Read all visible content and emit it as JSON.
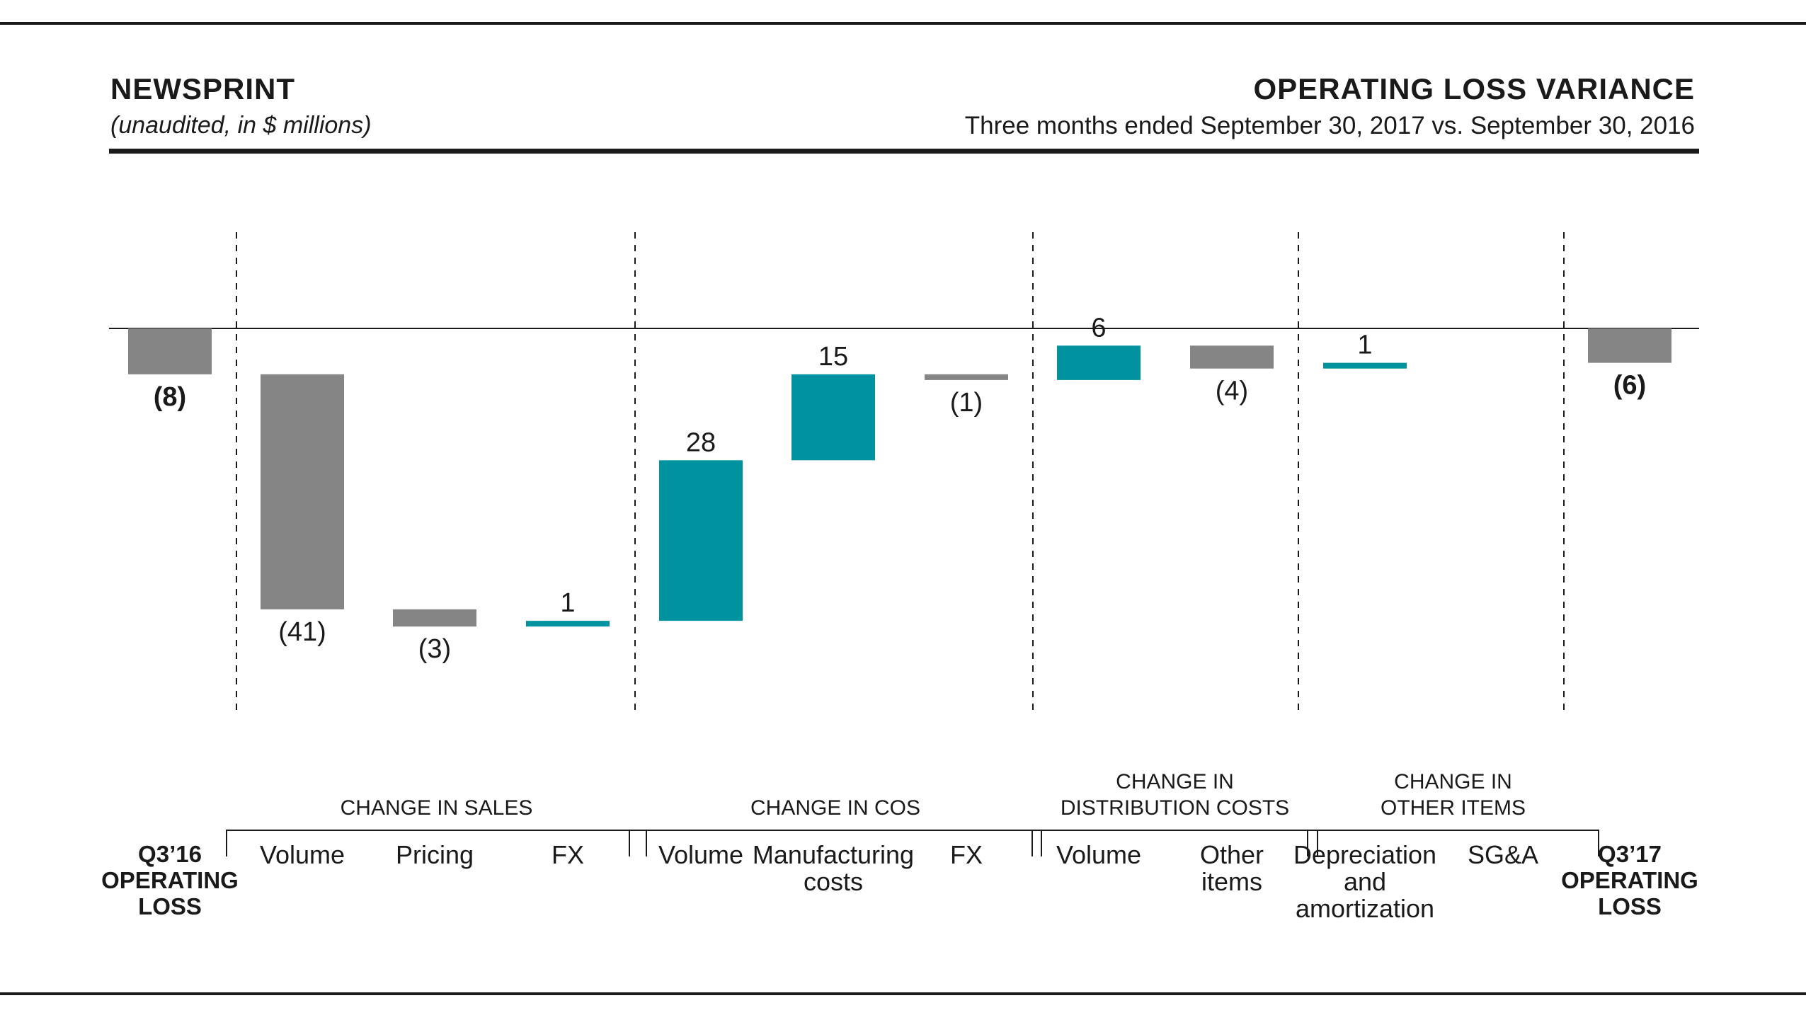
{
  "header": {
    "section": "NEWSPRINT",
    "units": "(unaudited, in $ millions)",
    "title": "OPERATING LOSS VARIANCE",
    "subtitle": "Three months ended September 30, 2017 vs. September 30, 2016"
  },
  "colors": {
    "decrease": "#858585",
    "increase": "#00939f",
    "total": "#858585",
    "text": "#1a1a1a"
  },
  "chart_data": {
    "type": "bar",
    "title": "OPERATING LOSS VARIANCE",
    "subtitle": "Three months ended September 30, 2017 vs. September 30, 2016",
    "units": "(unaudited, in $ millions)",
    "grid": false,
    "bars": [
      {
        "id": "start",
        "kind": "total",
        "label_lines": [
          "Q3’16",
          "OPERATING",
          "LOSS"
        ],
        "value": -8,
        "display": "(8)"
      },
      {
        "id": "sales-volume",
        "kind": "change",
        "label_lines": [
          "Volume"
        ],
        "value": -41,
        "display": "(41)"
      },
      {
        "id": "sales-pricing",
        "kind": "change",
        "label_lines": [
          "Pricing"
        ],
        "value": -3,
        "display": "(3)"
      },
      {
        "id": "sales-fx",
        "kind": "change",
        "label_lines": [
          "FX"
        ],
        "value": 1,
        "display": "1"
      },
      {
        "id": "cos-volume",
        "kind": "change",
        "label_lines": [
          "Volume"
        ],
        "value": 28,
        "display": "28"
      },
      {
        "id": "cos-manufacturing",
        "kind": "change",
        "label_lines": [
          "Manufacturing",
          "costs"
        ],
        "value": 15,
        "display": "15"
      },
      {
        "id": "cos-fx",
        "kind": "change",
        "label_lines": [
          "FX"
        ],
        "value": -1,
        "display": "(1)"
      },
      {
        "id": "dist-volume",
        "kind": "change",
        "label_lines": [
          "Volume"
        ],
        "value": 6,
        "display": "6"
      },
      {
        "id": "dist-other",
        "kind": "change",
        "label_lines": [
          "Other",
          "items"
        ],
        "value": -4,
        "display": "(4)"
      },
      {
        "id": "other-da",
        "kind": "change",
        "label_lines": [
          "Depreciation",
          "and",
          "amortization"
        ],
        "value": 1,
        "display": "1"
      },
      {
        "id": "other-sga",
        "kind": "change",
        "label_lines": [
          "SG&A"
        ],
        "value": 0,
        "display": ""
      },
      {
        "id": "end",
        "kind": "total",
        "label_lines": [
          "Q3’17",
          "OPERATING",
          "LOSS"
        ],
        "value": -6,
        "display": "(6)"
      }
    ],
    "groups": [
      {
        "label_lines": [
          "CHANGE IN SALES"
        ],
        "members": [
          1,
          2,
          3
        ]
      },
      {
        "label_lines": [
          "CHANGE IN COS"
        ],
        "members": [
          4,
          5,
          6
        ]
      },
      {
        "label_lines": [
          "CHANGE IN",
          "DISTRIBUTION COSTS"
        ],
        "members": [
          7,
          8
        ]
      },
      {
        "label_lines": [
          "CHANGE IN",
          "OTHER ITEMS"
        ],
        "members": [
          9,
          10
        ]
      }
    ]
  }
}
